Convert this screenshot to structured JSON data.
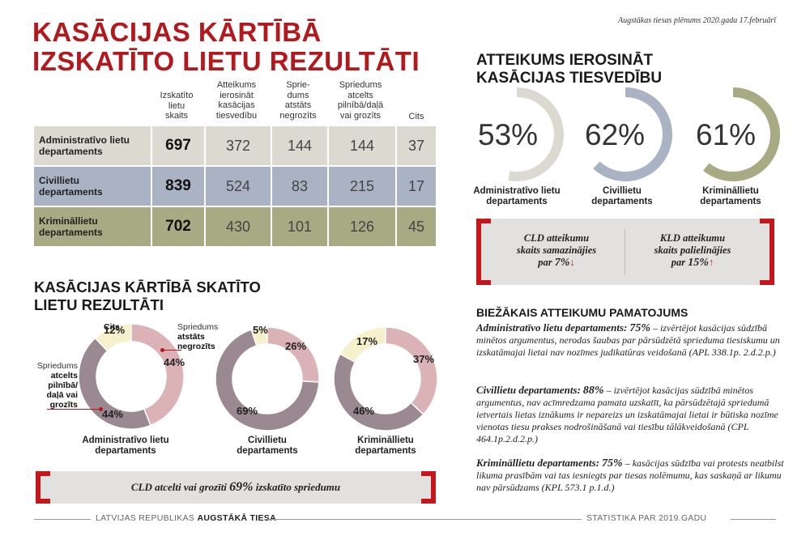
{
  "header": {
    "title_line1": "KASĀCIJAS KĀRTĪBĀ",
    "title_line2": "IZSKATĪTO LIETU REZULTĀTI",
    "source_note": "Augstākas tiesas plēnums 2020.gada 17.februārī"
  },
  "table": {
    "columns": [
      "Izskatīto lietu skaits",
      "Atteikums ierosināt kasācijas tiesvedību",
      "Sprie-dums atstāts negrozīts",
      "Spriedums atcelts pilnībā/daļā vai grozīts",
      "Cits"
    ],
    "column_lines": [
      [
        "Izskatīto",
        "lietu",
        "skaits"
      ],
      [
        "Atteikums",
        "ierosināt",
        "kasācijas",
        "tiesvedību"
      ],
      [
        "Sprie-",
        "dums",
        "atstāts",
        "negrozīts"
      ],
      [
        "Spriedums",
        "atcelts",
        "pilnībā/daļā",
        "vai grozīts"
      ],
      [
        "Cits"
      ]
    ],
    "rows": [
      {
        "dept_line1": "Administratīvo lietu",
        "dept_line2": "departaments",
        "values": [
          "697",
          "372",
          "144",
          "144",
          "37"
        ],
        "color": "#dcdad0"
      },
      {
        "dept_line1": "Civillietu",
        "dept_line2": "departaments",
        "values": [
          "839",
          "524",
          "83",
          "215",
          "17"
        ],
        "color": "#aab3c4"
      },
      {
        "dept_line1": "Krimināllietu",
        "dept_line2": "departaments",
        "values": [
          "702",
          "430",
          "101",
          "126",
          "45"
        ],
        "color": "#a8aa84"
      }
    ]
  },
  "results_section": {
    "title_line1": "KASĀCIJAS KĀRTĪBĀ SKATĪTO",
    "title_line2": "LIETU REZULTĀTI",
    "ann_cits": "Cits",
    "ann_negrozits_1": "Spriedums",
    "ann_negrozits_2": "atstāts",
    "ann_negrozits_3": "negrozīts",
    "ann_atcelts_1": "Spriedums",
    "ann_atcelts_2": "atcelts",
    "ann_atcelts_3": "pilnībā/",
    "ann_atcelts_4": "daļā vai",
    "ann_atcelts_5": "grozīts"
  },
  "refusal_section": {
    "title_line1": "ATTEIKUMS IEROSINĀT",
    "title_line2": "KASĀCIJAS TIESVEDĪBU"
  },
  "cld_bar": {
    "text": "CLD atcelti vai grozīti",
    "value": "69%",
    "suffix": "izskatīto spriedumu"
  },
  "change_box": {
    "left_l1": "CLD atteikumu",
    "left_l2": "skaits samazinājies",
    "left_l3": "par",
    "left_val": "7%",
    "left_arrow": "↓",
    "right_l1": "KLD atteikumu",
    "right_l2": "skaits palielinājies",
    "right_l3": "par",
    "right_val": "15%",
    "right_arrow": "↑"
  },
  "reasons": {
    "title": "BIEŽĀKAIS ATTEIKUMU PAMATOJUMS",
    "items": [
      {
        "dept": "Administratīvo lietu departaments:",
        "pct": "75%",
        "text": "– izvērtējot kasācijas sūdzībā minētos argumentus, nerodas šaubas par pārsūdzētā sprieduma tiesiskumu un izskatāmajai lietai nav nozīmes judikatūras veidošanā (APL 338.1p. 2.d.2.p.)"
      },
      {
        "dept": "Civillietu departaments:",
        "pct": "88%",
        "text": "– izvērtējot kasācijas sūdzībā minētos argumentus, nav acīmredzama pamata uzskatīt, ka pārsūdzētajā spriedumā ietvertais lietas iznākums ir nepareizs un izskatāmajai lietai ir būtiska nozīme vienotas tiesu prakses nodrošināšanā vai tiesību tālākveidošanā (CPL 464.1p.2.d.2.p.)"
      },
      {
        "dept": "Krimināllietu departaments:",
        "pct": "75%",
        "text": "– kasācijas sūdzība vai protests neatbilst likuma prasībām vai tas iesniegts par tiesas nolēmumu, kas saskaņā ar likumu nav pārsūdzams (KPL 573.1 p.1.d.)"
      }
    ]
  },
  "footer": {
    "left_normal": "LATVIJAS REPUBLIKAS",
    "left_bold": "AUGSTĀKĀ TIESA",
    "right": "STATISTIKA PAR 2019.GADU"
  },
  "colors": {
    "accent_red": "#b3181d",
    "bracket_red": "#c5161c",
    "admin_gray": "#dcdad0",
    "civil_blue": "#aab3c4",
    "criminal_olive": "#a8aa84",
    "donut_mauve": "#9b8991",
    "donut_pink": "#dbb3b7",
    "donut_cream": "#f6f0cc"
  },
  "chart_data": [
    {
      "type": "pie",
      "title": "Administratīvo lietu departaments",
      "categories": [
        "Spriedums atstāts negrozīts",
        "Spriedums atcelts pilnībā/daļā vai grozīts",
        "Cits"
      ],
      "values": [
        44,
        44,
        12
      ],
      "labels": [
        "44%",
        "44%",
        "12%"
      ],
      "colors": [
        "#dbb3b7",
        "#9b8991",
        "#f6f0cc"
      ]
    },
    {
      "type": "pie",
      "title": "Civillietu departaments",
      "categories": [
        "Spriedums atstāts negrozīts",
        "Spriedums atcelts pilnībā/daļā vai grozīts",
        "Cits"
      ],
      "values": [
        26,
        69,
        5
      ],
      "labels": [
        "26%",
        "69%",
        "5%"
      ],
      "colors": [
        "#dbb3b7",
        "#9b8991",
        "#f6f0cc"
      ]
    },
    {
      "type": "pie",
      "title": "Krimināllietu departaments",
      "categories": [
        "Spriedums atstāts negrozīts",
        "Spriedums atcelts pilnībā/daļā vai grozīts",
        "Cits"
      ],
      "values": [
        37,
        46,
        17
      ],
      "labels": [
        "37%",
        "46%",
        "17%"
      ],
      "colors": [
        "#dbb3b7",
        "#9b8991",
        "#f6f0cc"
      ]
    },
    {
      "type": "pie",
      "title": "Administratīvo lietu departaments",
      "categories": [
        "Atteikums ierosināt kasācijas tiesvedību"
      ],
      "values": [
        53
      ],
      "labels": [
        "53%"
      ],
      "colors": [
        "#dcdad0"
      ]
    },
    {
      "type": "pie",
      "title": "Civillietu departaments",
      "categories": [
        "Atteikums ierosināt kasācijas tiesvedību"
      ],
      "values": [
        62
      ],
      "labels": [
        "62%"
      ],
      "colors": [
        "#aab3c4"
      ]
    },
    {
      "type": "pie",
      "title": "Krimināllietu departaments",
      "categories": [
        "Atteikums ierosināt kasācijas tiesvedību"
      ],
      "values": [
        61
      ],
      "labels": [
        "61%"
      ],
      "colors": [
        "#a8aa84"
      ]
    }
  ]
}
